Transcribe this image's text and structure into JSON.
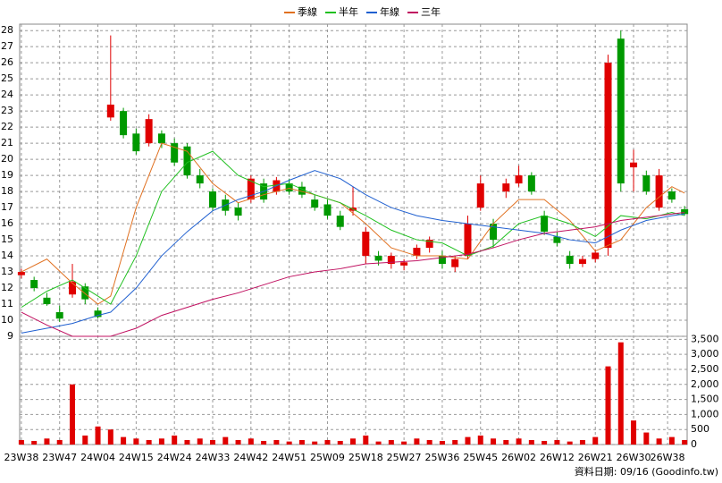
{
  "chart_data": {
    "type": "candlestick",
    "up_color": "#e00000",
    "down_color": "#009900",
    "grid": true,
    "xlim": [
      -0.4,
      156.6
    ],
    "xticks": [
      {
        "value": 0,
        "label": "23W38"
      },
      {
        "value": 9,
        "label": "23W47"
      },
      {
        "value": 18,
        "label": "24W04"
      },
      {
        "value": 27,
        "label": "24W15"
      },
      {
        "value": 36,
        "label": "24W24"
      },
      {
        "value": 45,
        "label": "24W33"
      },
      {
        "value": 54,
        "label": "24W42"
      },
      {
        "value": 63,
        "label": "24W51"
      },
      {
        "value": 72,
        "label": "25W09"
      },
      {
        "value": 81,
        "label": "25W18"
      },
      {
        "value": 90,
        "label": "25W27"
      },
      {
        "value": 99,
        "label": "25W36"
      },
      {
        "value": 108,
        "label": "25W45"
      },
      {
        "value": 117,
        "label": "26W02"
      },
      {
        "value": 126,
        "label": "26W12"
      },
      {
        "value": 135,
        "label": "26W21"
      },
      {
        "value": 144,
        "label": "26W30"
      },
      {
        "value": 152,
        "label": "26W38"
      }
    ],
    "ylim": [
      9,
      28.4
    ],
    "yticks": [
      9,
      10,
      11,
      12,
      13,
      14,
      15,
      16,
      17,
      18,
      19,
      20,
      21,
      22,
      23,
      24,
      25,
      26,
      27,
      28
    ],
    "candles": {
      "x": [
        0,
        3,
        6,
        9,
        12,
        15,
        18,
        21,
        24,
        27,
        30,
        33,
        36,
        39,
        42,
        45,
        48,
        51,
        54,
        57,
        60,
        63,
        66,
        69,
        72,
        75,
        78,
        81,
        84,
        87,
        90,
        93,
        96,
        99,
        102,
        105,
        108,
        111,
        114,
        117,
        120,
        123,
        126,
        129,
        132,
        135,
        138,
        141,
        144,
        147,
        150,
        153,
        156
      ],
      "ohlc": [
        [
          12.8,
          13.2,
          12.6,
          13.0
        ],
        [
          12.5,
          12.7,
          11.8,
          12.0
        ],
        [
          11.4,
          11.7,
          10.9,
          11.0
        ],
        [
          10.5,
          10.9,
          9.9,
          10.1
        ],
        [
          11.6,
          13.5,
          11.4,
          12.4
        ],
        [
          12.1,
          12.3,
          11.0,
          11.3
        ],
        [
          10.6,
          10.8,
          10.1,
          10.2
        ],
        [
          22.6,
          27.7,
          22.4,
          23.4
        ],
        [
          23.0,
          23.2,
          21.3,
          21.5
        ],
        [
          21.6,
          21.9,
          20.3,
          20.5
        ],
        [
          21.0,
          22.8,
          20.8,
          22.5
        ],
        [
          21.6,
          21.8,
          20.7,
          21.0
        ],
        [
          21.0,
          21.3,
          19.6,
          19.8
        ],
        [
          20.8,
          21.0,
          18.8,
          19.0
        ],
        [
          19.0,
          19.4,
          18.2,
          18.5
        ],
        [
          18.0,
          18.2,
          16.8,
          17.0
        ],
        [
          17.5,
          17.8,
          16.5,
          16.8
        ],
        [
          17.0,
          17.3,
          16.2,
          16.5
        ],
        [
          17.5,
          19.0,
          17.3,
          18.8
        ],
        [
          18.5,
          18.8,
          17.3,
          17.5
        ],
        [
          18.0,
          18.9,
          17.8,
          18.7
        ],
        [
          18.5,
          18.8,
          17.8,
          18.0
        ],
        [
          18.3,
          18.6,
          17.6,
          17.8
        ],
        [
          17.5,
          17.8,
          16.8,
          17.0
        ],
        [
          17.2,
          17.5,
          16.3,
          16.5
        ],
        [
          16.5,
          16.8,
          15.6,
          15.8
        ],
        [
          16.8,
          18.3,
          16.5,
          17.0
        ],
        [
          14.0,
          15.8,
          13.5,
          15.5
        ],
        [
          14.0,
          14.3,
          13.4,
          13.7
        ],
        [
          13.5,
          14.2,
          13.2,
          14.0
        ],
        [
          13.4,
          13.8,
          13.1,
          13.6
        ],
        [
          14.0,
          14.7,
          13.8,
          14.5
        ],
        [
          14.5,
          15.2,
          14.2,
          15.0
        ],
        [
          14.0,
          14.3,
          13.2,
          13.5
        ],
        [
          13.3,
          14.0,
          13.0,
          13.8
        ],
        [
          14.0,
          16.5,
          13.8,
          16.0
        ],
        [
          17.0,
          19.0,
          16.8,
          18.5
        ],
        [
          16.0,
          16.3,
          14.5,
          15.0
        ],
        [
          18.0,
          18.8,
          17.6,
          18.5
        ],
        [
          18.5,
          19.6,
          18.3,
          19.0
        ],
        [
          19.0,
          19.2,
          17.8,
          18.0
        ],
        [
          16.5,
          16.8,
          15.3,
          15.5
        ],
        [
          15.2,
          15.5,
          14.6,
          14.8
        ],
        [
          14.0,
          14.3,
          13.2,
          13.5
        ],
        [
          13.5,
          14.0,
          13.3,
          13.8
        ],
        [
          13.8,
          14.4,
          13.6,
          14.2
        ],
        [
          14.5,
          26.5,
          14.0,
          26.0
        ],
        [
          27.5,
          28.0,
          18.0,
          18.5
        ],
        [
          19.5,
          20.6,
          18.0,
          19.8
        ],
        [
          19.0,
          19.3,
          17.8,
          18.0
        ],
        [
          17.0,
          19.4,
          16.8,
          19.0
        ],
        [
          18.0,
          18.2,
          17.3,
          17.5
        ],
        [
          16.9,
          17.1,
          16.5,
          16.6
        ]
      ]
    },
    "series": [
      {
        "name": "季線",
        "color": "#e07020",
        "x": [
          0,
          6,
          12,
          18,
          21,
          27,
          33,
          39,
          45,
          51,
          57,
          63,
          69,
          75,
          81,
          87,
          93,
          99,
          105,
          111,
          117,
          123,
          129,
          135,
          141,
          147,
          153,
          156
        ],
        "values": [
          13,
          13.8,
          12.3,
          11,
          11.5,
          17,
          21,
          20.5,
          18.5,
          17.3,
          17.8,
          18.2,
          17.8,
          17.3,
          16,
          14.5,
          14,
          14,
          13.8,
          16,
          17.5,
          17.5,
          16.2,
          14.3,
          15,
          17,
          18.3,
          17.9
        ]
      },
      {
        "name": "半年",
        "color": "#20c020",
        "x": [
          0,
          6,
          12,
          18,
          21,
          27,
          33,
          39,
          45,
          51,
          57,
          63,
          69,
          75,
          81,
          87,
          93,
          99,
          105,
          111,
          117,
          123,
          129,
          135,
          141,
          147,
          153,
          156
        ],
        "values": [
          10.8,
          11.8,
          12.5,
          11.5,
          11,
          14,
          18,
          19.8,
          20.5,
          19,
          18.3,
          18.5,
          17.8,
          17.3,
          16.5,
          15.6,
          15,
          14.8,
          14,
          14.6,
          16,
          16.5,
          16,
          15.2,
          16.5,
          16.3,
          16.7,
          16.5
        ]
      },
      {
        "name": "年線",
        "color": "#2060d0",
        "x": [
          0,
          6,
          12,
          18,
          21,
          27,
          33,
          39,
          45,
          51,
          57,
          63,
          69,
          75,
          81,
          87,
          93,
          99,
          105,
          111,
          117,
          123,
          129,
          135,
          141,
          147,
          153,
          156
        ],
        "values": [
          9.2,
          9.5,
          9.8,
          10.3,
          10.5,
          12,
          14,
          15.5,
          16.8,
          17.5,
          18,
          18.7,
          19.3,
          18.8,
          17.8,
          17,
          16.5,
          16.2,
          16,
          15.8,
          15.6,
          15.4,
          15,
          14.8,
          15.6,
          16.2,
          16.5,
          16.6
        ]
      },
      {
        "name": "三年",
        "color": "#c01060",
        "x": [
          0,
          6,
          12,
          18,
          21,
          27,
          33,
          39,
          45,
          51,
          57,
          63,
          69,
          75,
          81,
          87,
          93,
          99,
          105,
          111,
          117,
          123,
          129,
          135,
          141,
          147,
          153,
          156
        ],
        "values": [
          10.5,
          9.7,
          9,
          9,
          9,
          9.5,
          10.3,
          10.8,
          11.3,
          11.7,
          12.2,
          12.7,
          13,
          13.2,
          13.5,
          13.6,
          13.7,
          13.9,
          14.1,
          14.5,
          15,
          15.4,
          15.6,
          15.8,
          16.2,
          16.4,
          16.6,
          16.7
        ]
      }
    ],
    "volume": {
      "color": "#e00000",
      "values": [
        150,
        120,
        200,
        150,
        2000,
        300,
        600,
        500,
        250,
        200,
        150,
        200,
        300,
        150,
        200,
        150,
        250,
        150,
        200,
        120,
        150,
        100,
        150,
        100,
        150,
        120,
        200,
        300,
        100,
        150,
        100,
        200,
        150,
        120,
        150,
        250,
        300,
        200,
        150,
        200,
        150,
        120,
        150,
        100,
        150,
        250,
        2600,
        3400,
        800,
        400,
        200,
        250,
        150
      ],
      "y2lim": [
        0,
        3600
      ],
      "y2ticks": [
        0,
        {
          "value": 500,
          "label": "500"
        },
        {
          "value": 1000,
          "label": "1,000"
        },
        {
          "value": 1500,
          "label": "1,500"
        },
        {
          "value": 2000,
          "label": "2,000"
        },
        {
          "value": 2500,
          "label": "2,500"
        },
        {
          "value": 3000,
          "label": "3,000"
        },
        {
          "value": 3500,
          "label": "3,500"
        }
      ]
    },
    "source": "資料日期: 09/16 (Goodinfo.tw)"
  }
}
